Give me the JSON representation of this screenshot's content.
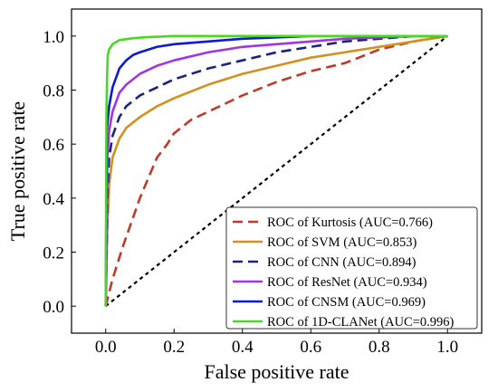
{
  "chart_data": {
    "type": "line",
    "title": "",
    "xlabel": "False positive rate",
    "ylabel": "True positive rate",
    "xlim": [
      -0.1,
      1.1
    ],
    "ylim": [
      -0.1,
      1.1
    ],
    "xticks": [
      "0.0",
      "0.2",
      "0.4",
      "0.6",
      "0.8",
      "1.0"
    ],
    "yticks": [
      "0.0",
      "0.2",
      "0.4",
      "0.6",
      "0.8",
      "1.0"
    ],
    "grid": false,
    "legend_position": "bottom-right",
    "reference_line": {
      "x": [
        0,
        1
      ],
      "y": [
        0,
        1
      ],
      "color": "#000000",
      "style": "dotted"
    },
    "series": [
      {
        "name": "ROC of Kurtosis (AUC=0.766)",
        "color": "#c0392b",
        "style": "dashed",
        "x": [
          0,
          0.02,
          0.05,
          0.1,
          0.15,
          0.18,
          0.2,
          0.25,
          0.3,
          0.4,
          0.5,
          0.6,
          0.7,
          0.8,
          0.9,
          1.0
        ],
        "y": [
          0,
          0.1,
          0.22,
          0.4,
          0.55,
          0.6,
          0.64,
          0.69,
          0.72,
          0.78,
          0.83,
          0.87,
          0.9,
          0.95,
          0.98,
          1.0
        ]
      },
      {
        "name": "ROC of SVM (AUC=0.853)",
        "color": "#d4901c",
        "style": "solid",
        "x": [
          0,
          0.005,
          0.01,
          0.02,
          0.04,
          0.06,
          0.1,
          0.15,
          0.2,
          0.3,
          0.4,
          0.5,
          0.6,
          0.7,
          0.8,
          0.9,
          1.0
        ],
        "y": [
          0,
          0.3,
          0.45,
          0.55,
          0.62,
          0.66,
          0.7,
          0.74,
          0.77,
          0.82,
          0.86,
          0.89,
          0.92,
          0.94,
          0.96,
          0.98,
          1.0
        ]
      },
      {
        "name": "ROC of CNN (AUC=0.894)",
        "color": "#1a237e",
        "style": "dashed",
        "x": [
          0,
          0.005,
          0.01,
          0.02,
          0.04,
          0.06,
          0.1,
          0.15,
          0.2,
          0.3,
          0.4,
          0.5,
          0.6,
          0.7,
          0.8,
          0.9,
          1.0
        ],
        "y": [
          0,
          0.4,
          0.55,
          0.63,
          0.7,
          0.74,
          0.78,
          0.81,
          0.84,
          0.88,
          0.91,
          0.94,
          0.96,
          0.98,
          0.99,
          1.0,
          1.0
        ]
      },
      {
        "name": "ROC of ResNet (AUC=0.934)",
        "color": "#a335e0",
        "style": "solid",
        "x": [
          0,
          0.005,
          0.01,
          0.02,
          0.04,
          0.06,
          0.1,
          0.15,
          0.2,
          0.3,
          0.4,
          0.5,
          0.6,
          0.7,
          0.8,
          0.9,
          1.0
        ],
        "y": [
          0,
          0.55,
          0.65,
          0.72,
          0.79,
          0.82,
          0.86,
          0.89,
          0.91,
          0.94,
          0.96,
          0.97,
          0.98,
          0.99,
          0.995,
          1.0,
          1.0
        ]
      },
      {
        "name": "ROC of CNSM (AUC=0.969)",
        "color": "#0a1ad6",
        "style": "solid",
        "x": [
          0,
          0.003,
          0.01,
          0.02,
          0.04,
          0.06,
          0.08,
          0.1,
          0.15,
          0.2,
          0.3,
          0.4,
          0.5,
          0.6,
          0.8,
          1.0
        ],
        "y": [
          0,
          0.65,
          0.74,
          0.81,
          0.88,
          0.91,
          0.93,
          0.94,
          0.96,
          0.97,
          0.98,
          0.99,
          0.995,
          1.0,
          1.0,
          1.0
        ]
      },
      {
        "name": "ROC of 1D-CLANet (AUC=0.996)",
        "color": "#4cd626",
        "style": "solid",
        "x": [
          0,
          0.002,
          0.004,
          0.006,
          0.01,
          0.02,
          0.04,
          0.08,
          0.12,
          0.16,
          0.2,
          0.3,
          0.5,
          0.8,
          1.0
        ],
        "y": [
          0,
          0.7,
          0.85,
          0.93,
          0.95,
          0.97,
          0.985,
          0.992,
          0.996,
          0.998,
          1.0,
          1.0,
          1.0,
          1.0,
          1.0
        ]
      }
    ]
  }
}
